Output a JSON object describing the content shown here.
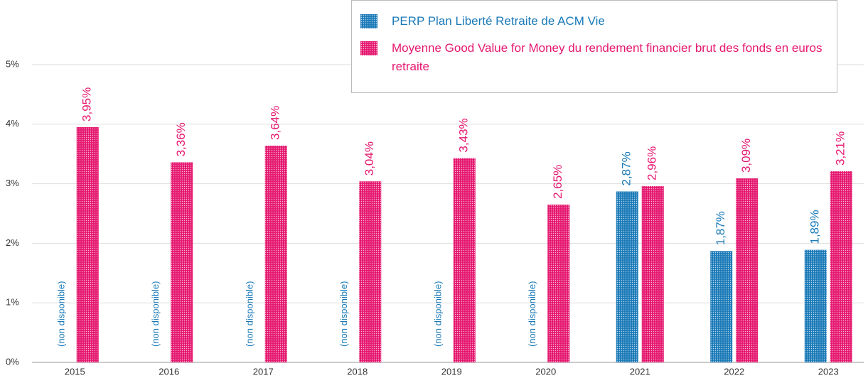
{
  "chart_data": {
    "type": "bar",
    "categories": [
      "2015",
      "2016",
      "2017",
      "2018",
      "2019",
      "2020",
      "2021",
      "2022",
      "2023"
    ],
    "series": [
      {
        "name": "PERP Plan Liberté Retraite de ACM Vie",
        "color": "#1a7ab8",
        "values": [
          null,
          null,
          null,
          null,
          null,
          null,
          2.87,
          1.87,
          1.89
        ],
        "value_labels": [
          "(non disponible)",
          "(non disponible)",
          "(non disponible)",
          "(non disponible)",
          "(non disponible)",
          "(non disponible)",
          "2,87%",
          "1,87%",
          "1,89%"
        ]
      },
      {
        "name": "Moyenne Good Value for Money du rendement financier brut des fonds en euros retraite",
        "color": "#e5176f",
        "values": [
          3.95,
          3.36,
          3.64,
          3.04,
          3.43,
          2.65,
          2.96,
          3.09,
          3.21
        ],
        "value_labels": [
          "3,95%",
          "3,36%",
          "3,64%",
          "3,04%",
          "3,43%",
          "2,65%",
          "2,96%",
          "3,09%",
          "3,21%"
        ]
      }
    ],
    "ylim": [
      0,
      5
    ],
    "yticks": [
      {
        "value": 0,
        "label": "0%"
      },
      {
        "value": 1,
        "label": "1%"
      },
      {
        "value": 2,
        "label": "2%"
      },
      {
        "value": 3,
        "label": "3%"
      },
      {
        "value": 4,
        "label": "4%"
      },
      {
        "value": 5,
        "label": "5%"
      }
    ],
    "grid": true
  }
}
